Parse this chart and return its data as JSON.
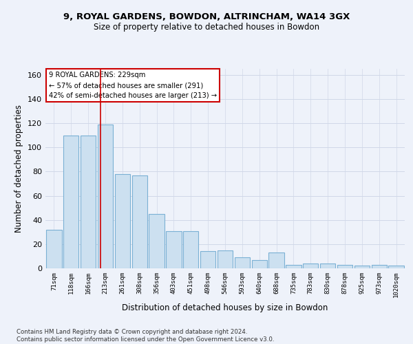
{
  "title_line1": "9, ROYAL GARDENS, BOWDON, ALTRINCHAM, WA14 3GX",
  "title_line2": "Size of property relative to detached houses in Bowdon",
  "xlabel": "Distribution of detached houses by size in Bowdon",
  "ylabel": "Number of detached properties",
  "categories": [
    "71sqm",
    "118sqm",
    "166sqm",
    "213sqm",
    "261sqm",
    "308sqm",
    "356sqm",
    "403sqm",
    "451sqm",
    "498sqm",
    "546sqm",
    "593sqm",
    "640sqm",
    "688sqm",
    "735sqm",
    "783sqm",
    "830sqm",
    "878sqm",
    "925sqm",
    "973sqm",
    "1020sqm"
  ],
  "values": [
    32,
    110,
    110,
    119,
    78,
    77,
    45,
    31,
    31,
    14,
    15,
    9,
    7,
    13,
    3,
    4,
    4,
    3,
    2,
    3,
    2
  ],
  "bar_color": "#cce0f0",
  "bar_edge_color": "#7ab0d4",
  "grid_color": "#d0d8e8",
  "bg_color": "#eef2fa",
  "vline_color": "#cc0000",
  "vline_pos": 2.72,
  "annotation_text": "9 ROYAL GARDENS: 229sqm\n← 57% of detached houses are smaller (291)\n42% of semi-detached houses are larger (213) →",
  "annotation_box_color": "#ffffff",
  "annotation_box_edge": "#cc0000",
  "footnote": "Contains HM Land Registry data © Crown copyright and database right 2024.\nContains public sector information licensed under the Open Government Licence v3.0.",
  "ylim": [
    0,
    165
  ],
  "yticks": [
    0,
    20,
    40,
    60,
    80,
    100,
    120,
    140,
    160
  ]
}
